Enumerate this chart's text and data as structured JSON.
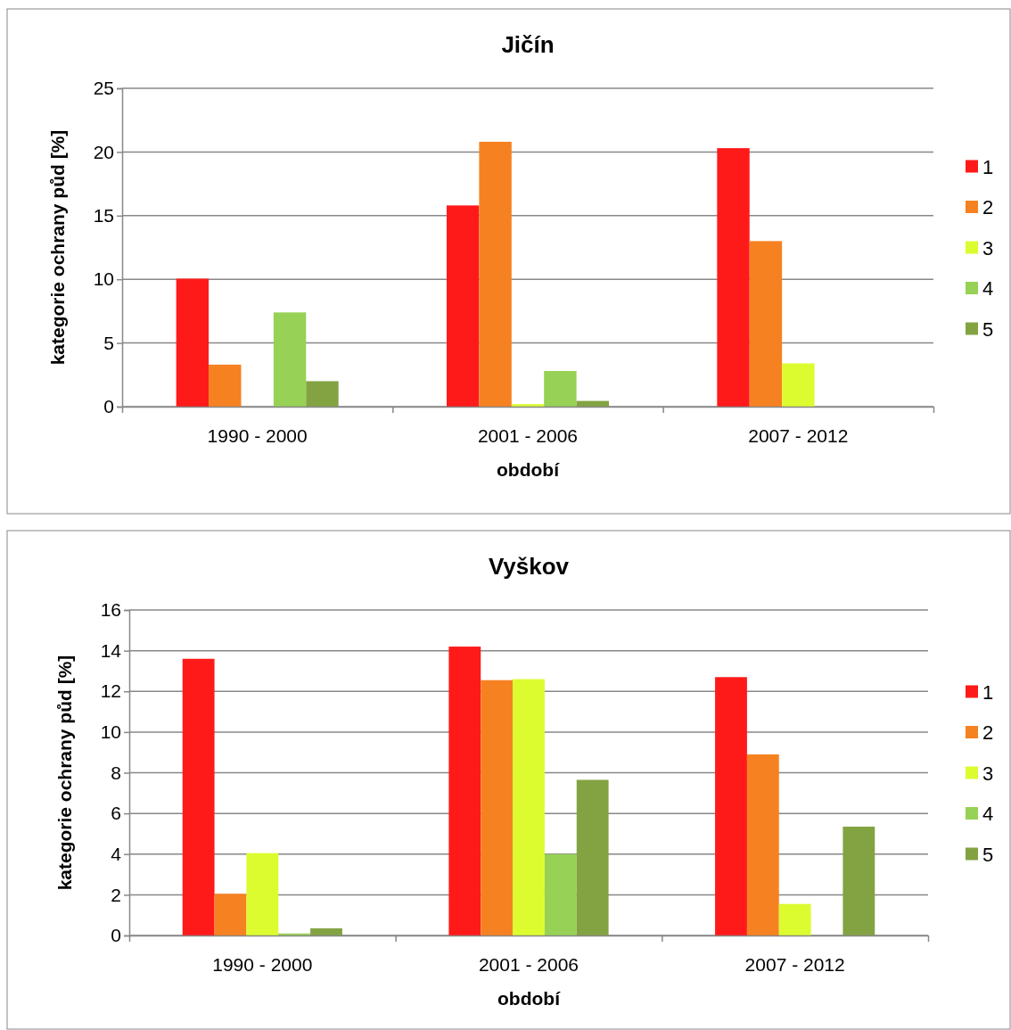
{
  "chart_data": [
    {
      "type": "bar",
      "title": "Jičín",
      "xlabel": "období",
      "ylabel": "kategorie ochrany půd [%]",
      "categories": [
        "1990 - 2000",
        "2001 - 2006",
        "2007 - 2012"
      ],
      "ylim": [
        0,
        25
      ],
      "yticks": [
        0,
        5,
        10,
        15,
        20,
        25
      ],
      "grid": "y",
      "legend": "right",
      "series": [
        {
          "name": "1",
          "color": "#ff1a1a",
          "values": [
            10.05,
            15.8,
            20.3
          ]
        },
        {
          "name": "2",
          "color": "#f68121",
          "values": [
            3.3,
            20.8,
            13.0
          ]
        },
        {
          "name": "3",
          "color": "#dcfc30",
          "values": [
            0,
            0.2,
            3.4
          ]
        },
        {
          "name": "4",
          "color": "#97d155",
          "values": [
            7.4,
            2.8,
            0
          ]
        },
        {
          "name": "5",
          "color": "#83a343",
          "values": [
            2.0,
            0.45,
            0
          ]
        }
      ]
    },
    {
      "type": "bar",
      "title": "Vyškov",
      "xlabel": "období",
      "ylabel": "kategorie ochrany půd [%]",
      "categories": [
        "1990 - 2000",
        "2001 - 2006",
        "2007 - 2012"
      ],
      "ylim": [
        0,
        16
      ],
      "yticks": [
        0,
        2,
        4,
        6,
        8,
        10,
        12,
        14,
        16
      ],
      "grid": "y",
      "legend": "right",
      "series": [
        {
          "name": "1",
          "color": "#ff1a1a",
          "values": [
            13.6,
            14.2,
            12.7
          ]
        },
        {
          "name": "2",
          "color": "#f68121",
          "values": [
            2.05,
            12.55,
            8.9
          ]
        },
        {
          "name": "3",
          "color": "#dcfc30",
          "values": [
            4.05,
            12.6,
            1.55
          ]
        },
        {
          "name": "4",
          "color": "#97d155",
          "values": [
            0.1,
            4.0,
            0
          ]
        },
        {
          "name": "5",
          "color": "#83a343",
          "values": [
            0.35,
            7.65,
            5.35
          ]
        }
      ]
    }
  ]
}
